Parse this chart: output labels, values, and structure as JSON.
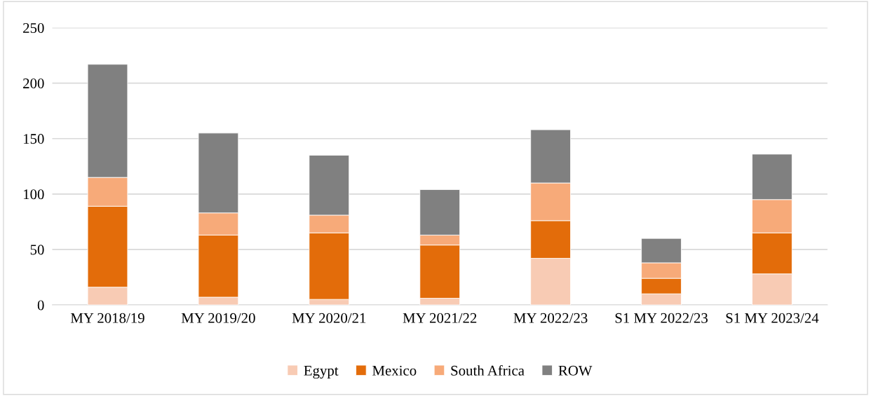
{
  "chart_data": {
    "type": "bar",
    "stacked": true,
    "categories": [
      "MY 2018/19",
      "MY 2019/20",
      "MY 2020/21",
      "MY 2021/22",
      "MY 2022/23",
      "S1 MY 2022/23",
      "S1 MY 2023/24"
    ],
    "series": [
      {
        "name": "Egypt",
        "color": "#f8cbb4",
        "values": [
          16,
          7,
          5,
          6,
          42,
          10,
          28
        ]
      },
      {
        "name": "Mexico",
        "color": "#e36c0a",
        "values": [
          73,
          56,
          60,
          48,
          34,
          14,
          37
        ]
      },
      {
        "name": "South Africa",
        "color": "#f7aa79",
        "values": [
          26,
          20,
          16,
          9,
          34,
          14,
          30
        ]
      },
      {
        "name": "ROW",
        "color": "#808080",
        "values": [
          102,
          72,
          54,
          41,
          48,
          22,
          41
        ]
      }
    ],
    "ylim": [
      0,
      250
    ],
    "yticks": [
      0,
      50,
      100,
      150,
      200,
      250
    ],
    "grid": "y",
    "legend": "bottom"
  }
}
